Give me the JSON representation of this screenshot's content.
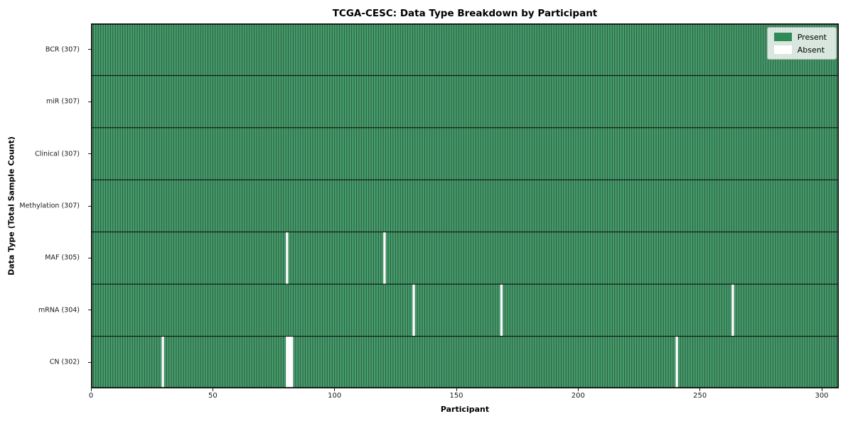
{
  "chart_data": {
    "type": "heatmap",
    "title": "TCGA-CESC: Data Type Breakdown by Participant",
    "xlabel": "Participant",
    "ylabel": "Data Type (Total Sample Count)",
    "x_range": [
      0,
      307
    ],
    "x_ticks": [
      0,
      50,
      100,
      150,
      200,
      250,
      300
    ],
    "n_participants": 307,
    "grid": false,
    "legend_position": "upper right",
    "colors": {
      "present": "#479b6b",
      "absent": "#ffffff",
      "cell_edge": "#1e4d36",
      "row_divider": "#111111",
      "plot_border": "#111111",
      "legend_present_swatch": "#2e8b57"
    },
    "rows": [
      {
        "data_type": "BCR",
        "label": "BCR (307)",
        "total": 307,
        "absent": []
      },
      {
        "data_type": "miR",
        "label": "miR (307)",
        "total": 307,
        "absent": []
      },
      {
        "data_type": "Clinical",
        "label": "Clinical (307)",
        "total": 307,
        "absent": []
      },
      {
        "data_type": "Methylation",
        "label": "Methylation (307)",
        "total": 307,
        "absent": []
      },
      {
        "data_type": "MAF",
        "label": "MAF (305)",
        "total": 305,
        "absent": [
          80,
          120
        ]
      },
      {
        "data_type": "mRNA",
        "label": "mRNA (304)",
        "total": 304,
        "absent": [
          132,
          168,
          263
        ]
      },
      {
        "data_type": "CN",
        "label": "CN (302)",
        "total": 302,
        "absent": [
          29,
          80,
          81,
          82,
          240
        ]
      }
    ],
    "legend": [
      {
        "label": "Present",
        "color": "#2e8b57"
      },
      {
        "label": "Absent",
        "color": "#ffffff"
      }
    ]
  }
}
